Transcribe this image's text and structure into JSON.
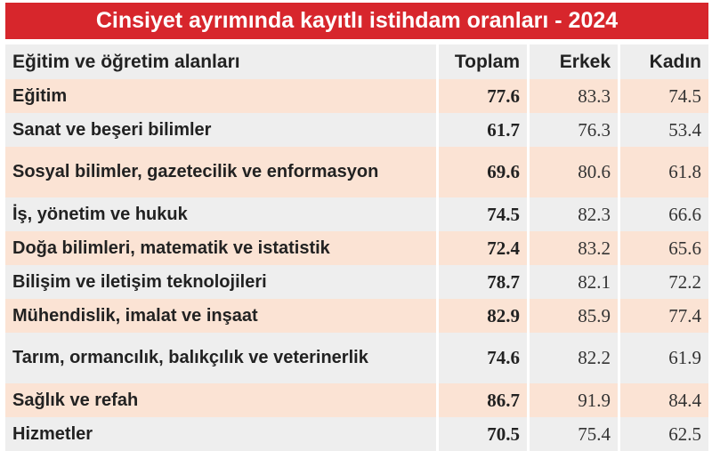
{
  "title": "Cinsiyet ayrımında kayıtlı istihdam oranları - 2024",
  "colors": {
    "banner": "#d7262c",
    "row_alt": "#fbe3d4",
    "row_plain": "#eeeeee"
  },
  "chart_data": {
    "type": "table",
    "title": "Cinsiyet ayrımında kayıtlı istihdam oranları - 2024",
    "columns": [
      "Eğitim ve öğretim alanları",
      "Toplam",
      "Erkek",
      "Kadın"
    ],
    "rows": [
      {
        "label": "Eğitim",
        "values": [
          "77.6",
          "83.3",
          "74.5"
        ]
      },
      {
        "label": "Sanat ve beşeri bilimler",
        "values": [
          "61.7",
          "76.3",
          "53.4"
        ]
      },
      {
        "label": "Sosyal bilimler, gazetecilik ve enformasyon",
        "values": [
          "69.6",
          "80.6",
          "61.8"
        ]
      },
      {
        "label": "İş, yönetim ve hukuk",
        "values": [
          "74.5",
          "82.3",
          "66.6"
        ]
      },
      {
        "label": "Doğa bilimleri, matematik ve istatistik",
        "values": [
          "72.4",
          "83.2",
          "65.6"
        ]
      },
      {
        "label": "Bilişim ve iletişim teknolojileri",
        "values": [
          "78.7",
          "82.1",
          "72.2"
        ]
      },
      {
        "label": "Mühendislik, imalat ve inşaat",
        "values": [
          "82.9",
          "85.9",
          "77.4"
        ]
      },
      {
        "label": "Tarım, ormancılık, balıkçılık ve veterinerlik",
        "values": [
          "74.6",
          "82.2",
          "61.9"
        ]
      },
      {
        "label": "Sağlık ve refah",
        "values": [
          "86.7",
          "91.9",
          "84.4"
        ]
      },
      {
        "label": "Hizmetler",
        "values": [
          "70.5",
          "75.4",
          "62.5"
        ]
      }
    ]
  }
}
